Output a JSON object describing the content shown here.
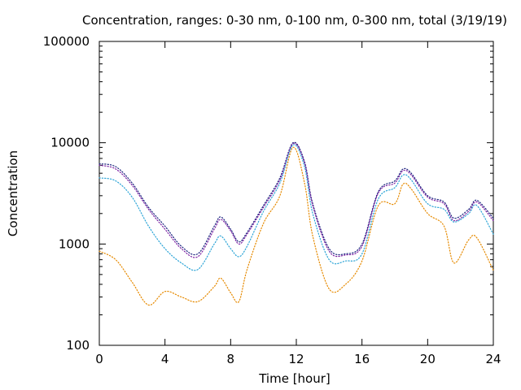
{
  "chart_data": {
    "type": "line",
    "title": "Concentration, ranges: 0-30 nm, 0-100 nm, 0-300 nm, total (3/19/19)",
    "xlabel": "Time [hour]",
    "ylabel": "Concentration",
    "xlim": [
      0,
      24
    ],
    "ylim": [
      100,
      100000
    ],
    "yscale": "log",
    "x_ticks": [
      0,
      4,
      8,
      12,
      16,
      20,
      24
    ],
    "y_ticks": [
      100,
      1000,
      10000,
      100000
    ],
    "x_tick_labels": [
      "0",
      "4",
      "8",
      "12",
      "16",
      "20",
      "24"
    ],
    "y_tick_labels": [
      "100",
      "1000",
      "10000",
      "100000"
    ],
    "grid": false,
    "legend": "none",
    "x": [
      0,
      1,
      2,
      3,
      4,
      5,
      6,
      7,
      7.4,
      8,
      8.5,
      9,
      10,
      11,
      11.8,
      12.5,
      13,
      14,
      15,
      16,
      17,
      18,
      18.5,
      19,
      20,
      21,
      21.6,
      22.5,
      23,
      24
    ],
    "series": [
      {
        "color": "#1a237e",
        "values": [
          6200,
          5800,
          4000,
          2300,
          1500,
          950,
          800,
          1500,
          1850,
          1400,
          1050,
          1300,
          2400,
          4500,
          10000,
          6500,
          2500,
          900,
          800,
          1000,
          3300,
          4200,
          5500,
          5000,
          3000,
          2600,
          1800,
          2200,
          2700,
          1800
        ]
      },
      {
        "color": "#7b1fa2",
        "values": [
          6000,
          5500,
          3800,
          2200,
          1400,
          900,
          750,
          1400,
          1750,
          1350,
          1000,
          1250,
          2300,
          4300,
          9800,
          6300,
          2400,
          850,
          780,
          950,
          3200,
          4000,
          5300,
          4800,
          2900,
          2500,
          1700,
          2100,
          2600,
          1700
        ]
      },
      {
        "color": "#29a3d6",
        "values": [
          4500,
          4200,
          2900,
          1500,
          900,
          650,
          560,
          1000,
          1200,
          900,
          750,
          950,
          2100,
          4000,
          9500,
          5800,
          2000,
          700,
          680,
          800,
          2800,
          3600,
          4800,
          4300,
          2500,
          2200,
          1650,
          2000,
          2400,
          1250
        ]
      },
      {
        "color": "#e68a00",
        "values": [
          850,
          700,
          420,
          250,
          340,
          300,
          270,
          380,
          460,
          330,
          270,
          560,
          1600,
          3000,
          9000,
          4000,
          1200,
          360,
          400,
          680,
          2400,
          2500,
          3900,
          3500,
          2000,
          1500,
          650,
          1100,
          1150,
          550
        ]
      }
    ]
  }
}
